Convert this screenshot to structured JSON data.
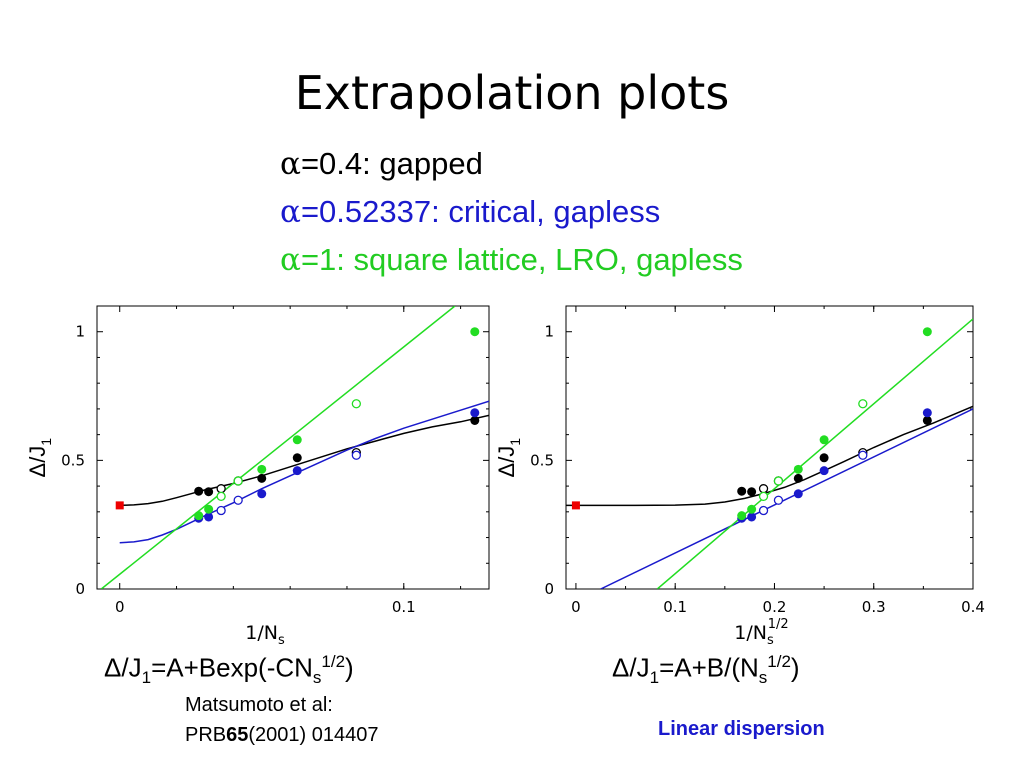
{
  "title": "Extrapolation plots",
  "legend": [
    {
      "greek": "α",
      "text": "=0.4: gapped",
      "color": "#000000"
    },
    {
      "greek": "α",
      "text": "=0.52337: critical, gapless",
      "color": "#1a1acc"
    },
    {
      "greek": "α",
      "text": "=1: square lattice, LRO, gapless",
      "color": "#22cc22"
    }
  ],
  "formulas": {
    "left": {
      "a": "Δ/J",
      "sub": "1",
      "b": "=A+Bexp(-CN",
      "sub2": "s",
      "sup": "1/2",
      "c": ")"
    },
    "right": {
      "a": "Δ/J",
      "sub": "1",
      "b": "=A+B/(N",
      "sub2": "s",
      "sup": "1/2",
      "c": ")"
    }
  },
  "reference": {
    "line1": "Matsumoto et al:",
    "prefix": "PRB",
    "volume": "65",
    "rest": "(2001) 014407"
  },
  "note": "Linear dispersion",
  "colors": {
    "black": "#000000",
    "blue": "#1a1acc",
    "green": "#22dd22",
    "red": "#ee0000"
  },
  "chart_data": [
    {
      "type": "scatter",
      "xlabel": "1/N",
      "xlabel_sub": "s",
      "ylabel": "Δ/J",
      "ylabel_sub": "1",
      "xlim": [
        -0.008,
        0.13
      ],
      "ylim": [
        0,
        1.1
      ],
      "xticks": [
        {
          "v": 0,
          "label": "0"
        },
        {
          "v": 0.1,
          "label": "0.1"
        }
      ],
      "yticks": [
        {
          "v": 0,
          "label": "0"
        },
        {
          "v": 0.5,
          "label": "0.5"
        },
        {
          "v": 1,
          "label": "1"
        }
      ],
      "series": [
        {
          "color": "black",
          "points": [
            {
              "x": 0.0278,
              "y": 0.38,
              "filled": true
            },
            {
              "x": 0.0313,
              "y": 0.378,
              "filled": true
            },
            {
              "x": 0.0357,
              "y": 0.39,
              "filled": false
            },
            {
              "x": 0.0417,
              "y": 0.42,
              "filled": false
            },
            {
              "x": 0.05,
              "y": 0.43,
              "filled": true
            },
            {
              "x": 0.0625,
              "y": 0.51,
              "filled": true
            },
            {
              "x": 0.0833,
              "y": 0.53,
              "filled": false
            },
            {
              "x": 0.125,
              "y": 0.655,
              "filled": true
            }
          ]
        },
        {
          "color": "blue",
          "points": [
            {
              "x": 0.0278,
              "y": 0.275,
              "filled": true
            },
            {
              "x": 0.0313,
              "y": 0.28,
              "filled": true
            },
            {
              "x": 0.0357,
              "y": 0.305,
              "filled": false
            },
            {
              "x": 0.0417,
              "y": 0.345,
              "filled": false
            },
            {
              "x": 0.05,
              "y": 0.37,
              "filled": true
            },
            {
              "x": 0.0625,
              "y": 0.46,
              "filled": true
            },
            {
              "x": 0.0833,
              "y": 0.52,
              "filled": false
            },
            {
              "x": 0.125,
              "y": 0.685,
              "filled": true
            }
          ]
        },
        {
          "color": "green",
          "points": [
            {
              "x": 0.0278,
              "y": 0.285,
              "filled": true
            },
            {
              "x": 0.0313,
              "y": 0.31,
              "filled": true
            },
            {
              "x": 0.0357,
              "y": 0.36,
              "filled": false
            },
            {
              "x": 0.0417,
              "y": 0.42,
              "filled": false
            },
            {
              "x": 0.05,
              "y": 0.465,
              "filled": true
            },
            {
              "x": 0.0625,
              "y": 0.58,
              "filled": true
            },
            {
              "x": 0.0833,
              "y": 0.72,
              "filled": false
            },
            {
              "x": 0.125,
              "y": 1.0,
              "filled": true
            }
          ]
        },
        {
          "color": "red",
          "marker": "square",
          "points": [
            {
              "x": 0,
              "y": 0.325,
              "filled": true
            }
          ]
        }
      ],
      "curves": [
        {
          "color": "black",
          "points": [
            [
              -0.001,
              0.325
            ],
            [
              0.005,
              0.327
            ],
            [
              0.01,
              0.332
            ],
            [
              0.015,
              0.341
            ],
            [
              0.02,
              0.355
            ],
            [
              0.025,
              0.37
            ],
            [
              0.03,
              0.385
            ],
            [
              0.04,
              0.41
            ],
            [
              0.05,
              0.44
            ],
            [
              0.06,
              0.475
            ],
            [
              0.07,
              0.51
            ],
            [
              0.08,
              0.545
            ],
            [
              0.09,
              0.575
            ],
            [
              0.1,
              0.605
            ],
            [
              0.11,
              0.63
            ],
            [
              0.12,
              0.65
            ],
            [
              0.13,
              0.675
            ]
          ]
        },
        {
          "color": "blue",
          "points": [
            [
              0,
              0.18
            ],
            [
              0.005,
              0.183
            ],
            [
              0.01,
              0.192
            ],
            [
              0.015,
              0.21
            ],
            [
              0.02,
              0.232
            ],
            [
              0.025,
              0.258
            ],
            [
              0.03,
              0.285
            ],
            [
              0.04,
              0.335
            ],
            [
              0.05,
              0.39
            ],
            [
              0.06,
              0.44
            ],
            [
              0.07,
              0.49
            ],
            [
              0.08,
              0.54
            ],
            [
              0.09,
              0.585
            ],
            [
              0.1,
              0.625
            ],
            [
              0.11,
              0.66
            ],
            [
              0.12,
              0.695
            ],
            [
              0.13,
              0.73
            ]
          ]
        },
        {
          "color": "green",
          "points": [
            [
              -0.0065,
              0
            ],
            [
              0.118,
              1.1
            ]
          ]
        }
      ]
    },
    {
      "type": "scatter",
      "xlabel": "1/N",
      "xlabel_sub": "s",
      "xlabel_sup": "1/2",
      "ylabel": "Δ/J",
      "ylabel_sub": "1",
      "xlim": [
        -0.01,
        0.4
      ],
      "ylim": [
        0,
        1.1
      ],
      "xticks": [
        {
          "v": 0,
          "label": "0"
        },
        {
          "v": 0.1,
          "label": "0.1"
        },
        {
          "v": 0.2,
          "label": "0.2"
        },
        {
          "v": 0.3,
          "label": "0.3"
        },
        {
          "v": 0.4,
          "label": "0.4"
        }
      ],
      "yticks": [
        {
          "v": 0,
          "label": "0"
        },
        {
          "v": 0.5,
          "label": "0.5"
        },
        {
          "v": 1,
          "label": "1"
        }
      ],
      "series": [
        {
          "color": "black",
          "points": [
            {
              "x": 0.167,
              "y": 0.38,
              "filled": true
            },
            {
              "x": 0.177,
              "y": 0.378,
              "filled": true
            },
            {
              "x": 0.189,
              "y": 0.39,
              "filled": false
            },
            {
              "x": 0.204,
              "y": 0.42,
              "filled": false
            },
            {
              "x": 0.224,
              "y": 0.43,
              "filled": true
            },
            {
              "x": 0.25,
              "y": 0.51,
              "filled": true
            },
            {
              "x": 0.289,
              "y": 0.53,
              "filled": false
            },
            {
              "x": 0.354,
              "y": 0.655,
              "filled": true
            }
          ]
        },
        {
          "color": "blue",
          "points": [
            {
              "x": 0.167,
              "y": 0.275,
              "filled": true
            },
            {
              "x": 0.177,
              "y": 0.28,
              "filled": true
            },
            {
              "x": 0.189,
              "y": 0.305,
              "filled": false
            },
            {
              "x": 0.204,
              "y": 0.345,
              "filled": false
            },
            {
              "x": 0.224,
              "y": 0.37,
              "filled": true
            },
            {
              "x": 0.25,
              "y": 0.46,
              "filled": true
            },
            {
              "x": 0.289,
              "y": 0.52,
              "filled": false
            },
            {
              "x": 0.354,
              "y": 0.685,
              "filled": true
            }
          ]
        },
        {
          "color": "green",
          "points": [
            {
              "x": 0.167,
              "y": 0.285,
              "filled": true
            },
            {
              "x": 0.177,
              "y": 0.31,
              "filled": true
            },
            {
              "x": 0.189,
              "y": 0.36,
              "filled": false
            },
            {
              "x": 0.204,
              "y": 0.42,
              "filled": false
            },
            {
              "x": 0.224,
              "y": 0.465,
              "filled": true
            },
            {
              "x": 0.25,
              "y": 0.58,
              "filled": true
            },
            {
              "x": 0.289,
              "y": 0.72,
              "filled": false
            },
            {
              "x": 0.354,
              "y": 1.0,
              "filled": true
            }
          ]
        },
        {
          "color": "red",
          "marker": "square",
          "points": [
            {
              "x": 0,
              "y": 0.325,
              "filled": true
            }
          ]
        }
      ],
      "curves": [
        {
          "color": "black",
          "points": [
            [
              -0.01,
              0.325
            ],
            [
              0.05,
              0.325
            ],
            [
              0.1,
              0.326
            ],
            [
              0.13,
              0.33
            ],
            [
              0.15,
              0.338
            ],
            [
              0.17,
              0.352
            ],
            [
              0.19,
              0.372
            ],
            [
              0.21,
              0.395
            ],
            [
              0.23,
              0.425
            ],
            [
              0.25,
              0.46
            ],
            [
              0.27,
              0.495
            ],
            [
              0.3,
              0.55
            ],
            [
              0.33,
              0.6
            ],
            [
              0.36,
              0.645
            ],
            [
              0.4,
              0.71
            ]
          ]
        },
        {
          "color": "blue",
          "points": [
            [
              0.025,
              0
            ],
            [
              0.4,
              0.7
            ]
          ]
        },
        {
          "color": "green",
          "points": [
            [
              0.082,
              0
            ],
            [
              0.4,
              1.05
            ]
          ]
        }
      ]
    }
  ]
}
